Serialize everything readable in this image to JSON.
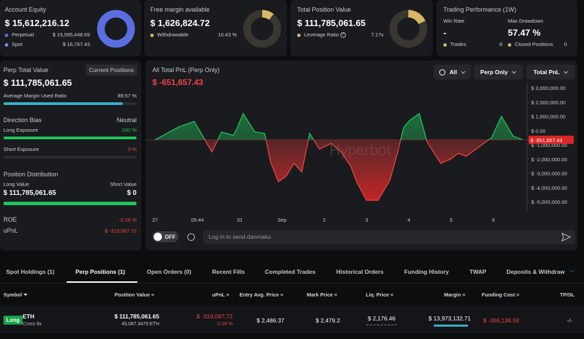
{
  "account_equity": {
    "label": "Account Equity",
    "value": "$ 15,612,216.12",
    "perpetual_label": "Perpetual",
    "perpetual_value": "$ 15,595,448.69",
    "spot_label": "Spot",
    "spot_value": "$ 16,767.43",
    "colors": {
      "perpetual": "#5b6ee1",
      "spot": "#7c8cf0"
    }
  },
  "free_margin": {
    "label": "Free margin available",
    "value": "$ 1,626,824.72",
    "withdrawable_label": "Withdrawable",
    "withdrawable_value": "10.43 %",
    "withdrawable_fraction": 0.1043,
    "accent": "#d8b866"
  },
  "total_position": {
    "label": "Total Position Value",
    "value": "$ 111,785,061.65",
    "leverage_label": "Leverage Ratio",
    "leverage_value": "7.17x",
    "leverage_fraction": 0.18,
    "accent": "#d8b866"
  },
  "performance": {
    "label": "Trading Performance (1W)",
    "win_rate_label": "Win Rate",
    "win_rate_value": "-",
    "max_drawdown_label": "Max Drawdown",
    "max_drawdown_value": "57.47 %",
    "trades_label": "Trades",
    "trades_value": "8",
    "closed_label": "Closed Positions",
    "closed_value": "0"
  },
  "perp_panel": {
    "total_label": "Perp Total Value",
    "current_positions_button": "Current Positions",
    "total_value": "$ 111,785,061.65",
    "margin_ratio_label": "Average Margin Used Ratio",
    "margin_ratio_value": "89.57 %",
    "margin_ratio_fraction": 0.8957,
    "direction_label": "Direction Bias",
    "direction_value": "Neutral",
    "long_exposure_label": "Long Exposure",
    "long_exposure_value": "100 %",
    "long_exposure_fraction": 1.0,
    "short_exposure_label": "Short Exposure",
    "short_exposure_value": "0 %",
    "short_exposure_fraction": 0.0,
    "distribution_label": "Position Distribution",
    "long_value_label": "Long Value",
    "short_value_label": "Short Value",
    "long_value": "$ 111,785,061.65",
    "short_value": "$ 0",
    "long_fraction": 1.0,
    "roe_label": "ROE",
    "roe_value": "-2.28 %",
    "upnl_label": "uPnL",
    "upnl_value": "$ -319,087.72"
  },
  "chart_panel": {
    "title": "All Total PnL (Perp Only)",
    "current_value": "$ -651,657.43",
    "filter_all": "All",
    "filter_perp": "Perp Only",
    "filter_metric": "Total PnL",
    "watermark": "Hyperbot",
    "toggle_label": "OFF",
    "danmaku_placeholder": "Log in to send danmaku",
    "positive_color": "#22c55e",
    "negative_color": "#ef4444"
  },
  "chart_data": {
    "type": "area",
    "x_tick_labels": [
      "27",
      "05:44",
      "31",
      "Sep",
      "2",
      "3",
      "4",
      "5",
      "6"
    ],
    "y_tick_labels": [
      "$ 3,000,000.00",
      "$ 2,000,000.00",
      "$ 1,000,000.00",
      "$ 0.00",
      "$ -1,000,000.00",
      "$ -2,000,000.00",
      "$ -3,000,000.00",
      "$ -4,000,000.00",
      "$ -5,000,000.00"
    ],
    "ylim": [
      -5000000,
      3000000
    ],
    "baseline_value": -651657.43,
    "baseline_label": "$ -651,657.43",
    "x": [
      0,
      0.6,
      1.0,
      1.2,
      1.45,
      1.7,
      2.0,
      2.1,
      2.25,
      2.55,
      2.8,
      2.95,
      3.15,
      3.35,
      3.55,
      3.75,
      3.95,
      4.2,
      4.5,
      4.75,
      5.0,
      5.15,
      5.4,
      5.7,
      6.0,
      6.2,
      6.35,
      6.5,
      6.75,
      6.95,
      7.3,
      7.55,
      7.75,
      7.95,
      8.3,
      8.6,
      8.85,
      9.15,
      9.4
    ],
    "y": [
      -650000,
      250000,
      650000,
      -300000,
      -1500000,
      -100000,
      -350000,
      200000,
      1200000,
      -100000,
      -200000,
      -2200000,
      -3600000,
      -3200000,
      -2300000,
      -2900000,
      -200000,
      -1300000,
      -900000,
      -1500000,
      -2500000,
      -3600000,
      -4900000,
      -4900000,
      -3500000,
      -1500000,
      200000,
      700000,
      1200000,
      -800000,
      -2300000,
      -2000000,
      -1600000,
      -1800000,
      -1100000,
      -500000,
      1000000,
      -400000,
      -650000
    ],
    "xlim": [
      0,
      9.4
    ]
  },
  "bottom_tabs": [
    {
      "label": "Spot Holdings (1)"
    },
    {
      "label": "Perp Positions (1)"
    },
    {
      "label": "Open Orders (0)"
    },
    {
      "label": "Recent Fills"
    },
    {
      "label": "Completed Trades"
    },
    {
      "label": "Historical Orders"
    },
    {
      "label": "Funding History"
    },
    {
      "label": "TWAP"
    },
    {
      "label": "Deposits & Withdraw"
    }
  ],
  "table": {
    "headers": {
      "symbol": "Symbol",
      "position_value": "Position Value",
      "upnl": "uPnL",
      "entry": "Entry Avg. Price",
      "mark": "Mark Price",
      "liq": "Liq. Price",
      "margin": "Margin",
      "funding": "Funding Cost",
      "tpsl": "TP/SL"
    },
    "row": {
      "side": "Long",
      "coin": "ETH",
      "mode": "Cross 8x",
      "position_value": "$ 111,785,061.65",
      "position_size": "45,087.3479 ETH",
      "upnl": "$ -319,087.72",
      "upnl_pct": "-2.28 %",
      "entry": "$ 2,486.37",
      "mark": "$ 2,479.2",
      "liq": "$ 2,176.46",
      "margin": "$ 13,973,132.71",
      "funding": "$ -306,138.59",
      "tpsl": "-/-"
    }
  }
}
